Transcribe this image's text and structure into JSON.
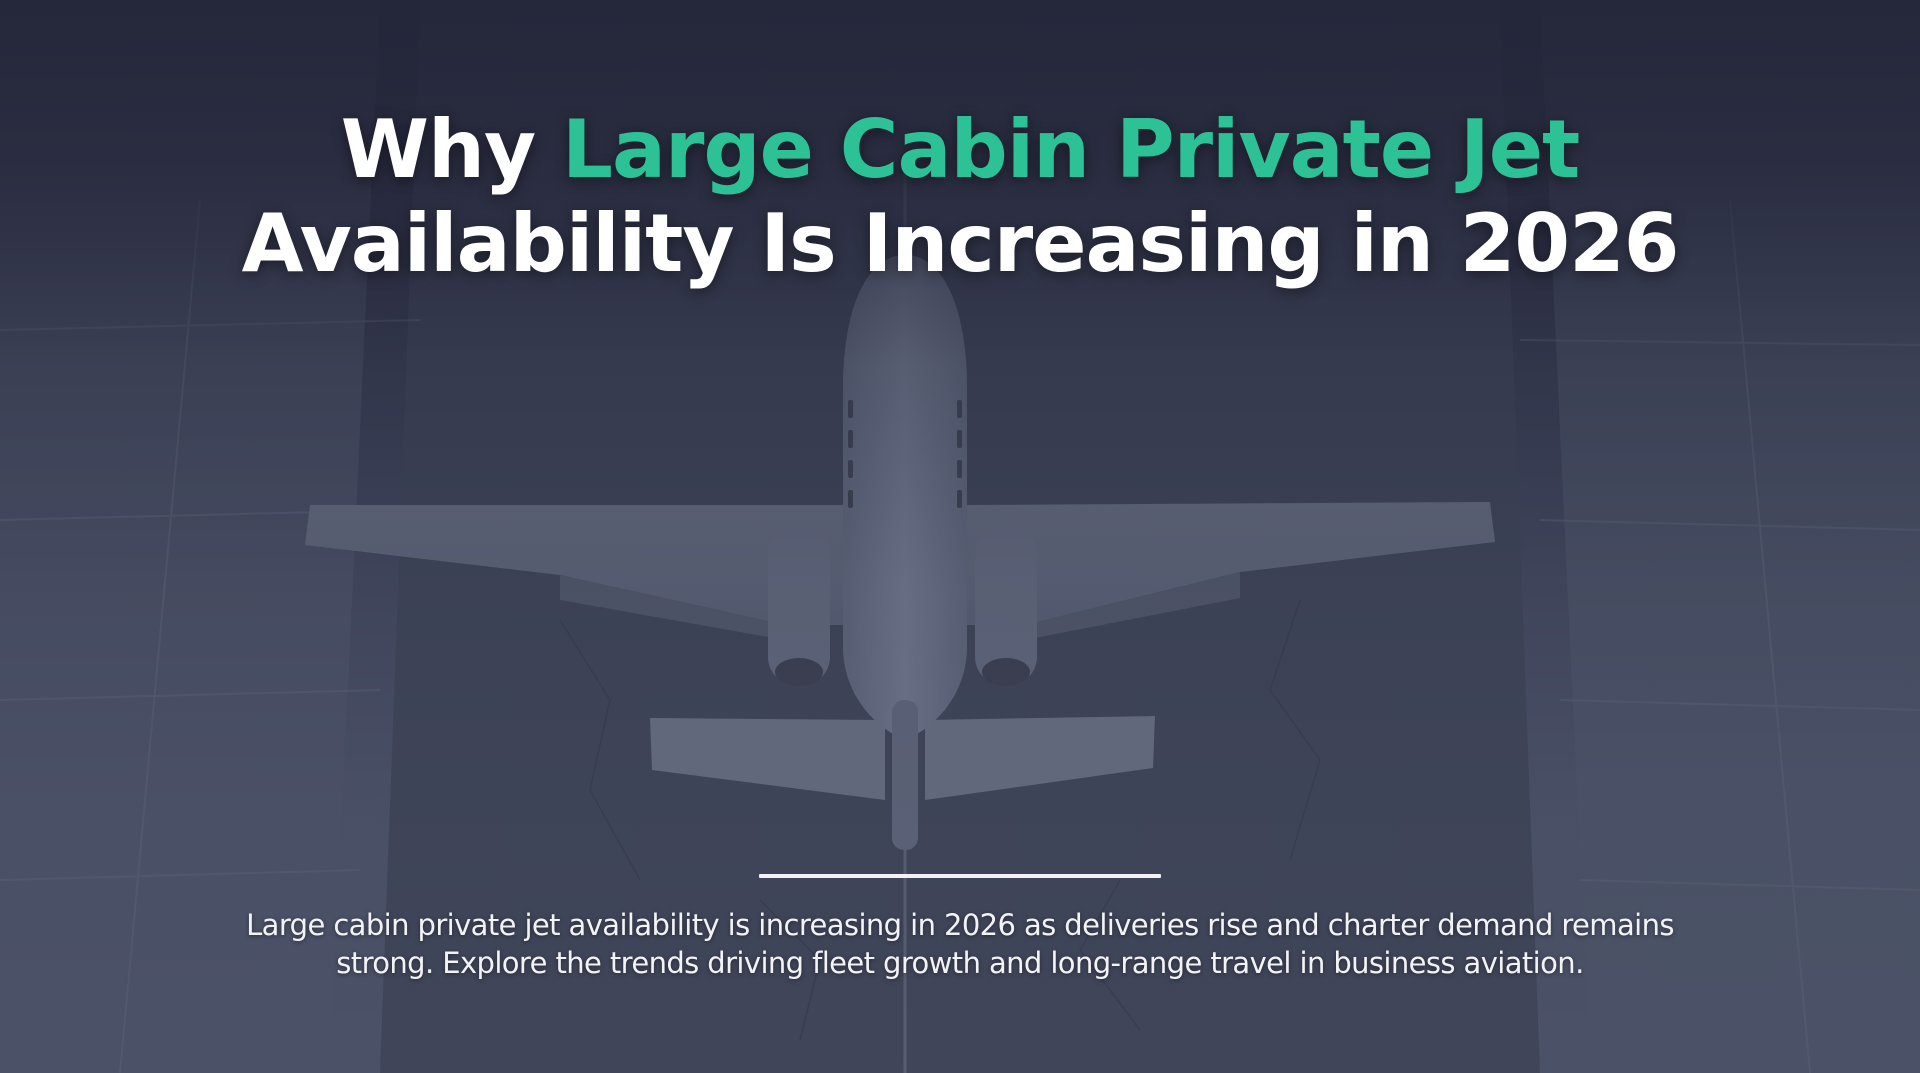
{
  "hero": {
    "title": {
      "lead": "Why",
      "accent": "Large Cabin Private Jet",
      "line2": "Availability Is Increasing in 2026"
    },
    "description": {
      "line1": "Large cabin private jet availability is increasing in 2026 as deliveries rise and charter demand remains",
      "line2": "strong. Explore the trends driving fleet growth and long-range travel in business aviation."
    },
    "colors": {
      "accent": "#2dc196",
      "heading": "#ffffff",
      "background": "#2a2d3f"
    },
    "background_image": "private-jet-top-view-on-tarmac"
  }
}
